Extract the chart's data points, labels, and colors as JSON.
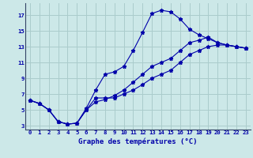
{
  "title": "Graphe des températures (°C)",
  "background_color": "#cce8e8",
  "grid_color": "#aacccc",
  "line_color": "#0000aa",
  "xlim": [
    -0.5,
    23.5
  ],
  "ylim": [
    2.5,
    18.5
  ],
  "xticks": [
    0,
    1,
    2,
    3,
    4,
    5,
    6,
    7,
    8,
    9,
    10,
    11,
    12,
    13,
    14,
    15,
    16,
    17,
    18,
    19,
    20,
    21,
    22,
    23
  ],
  "yticks": [
    3,
    5,
    7,
    9,
    11,
    13,
    15,
    17
  ],
  "line1_y": [
    6.2,
    5.8,
    5.0,
    3.5,
    3.2,
    3.3,
    5.2,
    7.5,
    9.5,
    9.8,
    10.5,
    12.5,
    14.8,
    17.2,
    17.6,
    17.4,
    16.5,
    15.2,
    14.5,
    14.0,
    13.5,
    13.2,
    13.0,
    12.8
  ],
  "line2_y": [
    6.2,
    5.8,
    5.0,
    3.5,
    3.2,
    3.3,
    5.0,
    6.5,
    6.5,
    6.5,
    7.0,
    7.5,
    8.2,
    9.0,
    9.5,
    10.0,
    11.0,
    12.0,
    12.5,
    13.0,
    13.2,
    13.2,
    13.0,
    12.8
  ],
  "line3_y": [
    6.2,
    5.8,
    5.0,
    3.5,
    3.2,
    3.3,
    5.0,
    6.0,
    6.3,
    6.8,
    7.5,
    8.5,
    9.5,
    10.5,
    11.0,
    11.5,
    12.5,
    13.5,
    13.8,
    14.2,
    13.5,
    13.2,
    13.0,
    12.8
  ],
  "xlabel_fontsize": 6.5,
  "tick_fontsize": 5.2
}
